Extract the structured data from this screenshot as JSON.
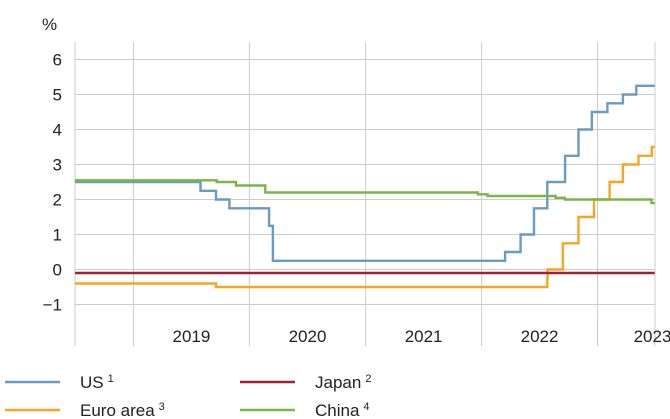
{
  "chart_data": {
    "type": "line",
    "title": "",
    "unit_label": "%",
    "xlabel": "",
    "ylabel": "",
    "x_ticks": [
      "2019",
      "2020",
      "2021",
      "2022",
      "2023"
    ],
    "y_ticks": [
      "6",
      "5",
      "4",
      "3",
      "2",
      "1",
      "0",
      "−1"
    ],
    "ylim": [
      -1.5,
      6.5
    ],
    "xlim": [
      "2018-07-01",
      "2023-07-01"
    ],
    "grid": true,
    "legend_position": "bottom",
    "series": [
      {
        "name": "US",
        "note": "1",
        "color": "#6a9bc3",
        "step": true,
        "points": [
          [
            "2018-07-01",
            2.5
          ],
          [
            "2019-07-31",
            2.25
          ],
          [
            "2019-09-18",
            2.0
          ],
          [
            "2019-10-30",
            1.75
          ],
          [
            "2020-03-03",
            1.25
          ],
          [
            "2020-03-15",
            0.25
          ],
          [
            "2022-03-16",
            0.5
          ],
          [
            "2022-05-04",
            1.0
          ],
          [
            "2022-06-15",
            1.75
          ],
          [
            "2022-07-27",
            2.5
          ],
          [
            "2022-09-21",
            3.25
          ],
          [
            "2022-11-02",
            4.0
          ],
          [
            "2022-12-14",
            4.5
          ],
          [
            "2023-02-01",
            4.75
          ],
          [
            "2023-03-22",
            5.0
          ],
          [
            "2023-05-03",
            5.25
          ],
          [
            "2023-06-30",
            5.25
          ]
        ]
      },
      {
        "name": "Euro area",
        "note": "3",
        "color": "#f5a623",
        "step": true,
        "points": [
          [
            "2018-07-01",
            -0.4
          ],
          [
            "2019-09-18",
            -0.5
          ],
          [
            "2022-07-27",
            -0.25
          ],
          [
            "2022-07-28",
            0.0
          ],
          [
            "2022-09-14",
            0.75
          ],
          [
            "2022-11-02",
            1.5
          ],
          [
            "2022-12-21",
            2.0
          ],
          [
            "2023-02-08",
            2.5
          ],
          [
            "2023-03-22",
            3.0
          ],
          [
            "2023-05-10",
            3.25
          ],
          [
            "2023-06-21",
            3.5
          ],
          [
            "2023-06-30",
            3.5
          ]
        ]
      },
      {
        "name": "Japan",
        "note": "2",
        "color": "#9b2335",
        "step": true,
        "points": [
          [
            "2018-07-01",
            -0.1
          ],
          [
            "2023-06-30",
            -0.1
          ]
        ]
      },
      {
        "name": "China",
        "note": "4",
        "color": "#7ab648",
        "step": true,
        "points": [
          [
            "2018-07-01",
            2.55
          ],
          [
            "2019-08-20",
            2.55
          ],
          [
            "2019-09-20",
            2.5
          ],
          [
            "2019-11-20",
            2.4
          ],
          [
            "2020-02-20",
            2.2
          ],
          [
            "2021-12-20",
            2.15
          ],
          [
            "2022-01-20",
            2.1
          ],
          [
            "2022-08-22",
            2.05
          ],
          [
            "2022-09-20",
            2.0
          ],
          [
            "2023-06-20",
            1.9
          ],
          [
            "2023-06-30",
            1.9
          ]
        ]
      }
    ]
  },
  "legend": {
    "col1": [
      "US",
      "Euro area"
    ],
    "col2": [
      "Japan",
      "China"
    ]
  }
}
